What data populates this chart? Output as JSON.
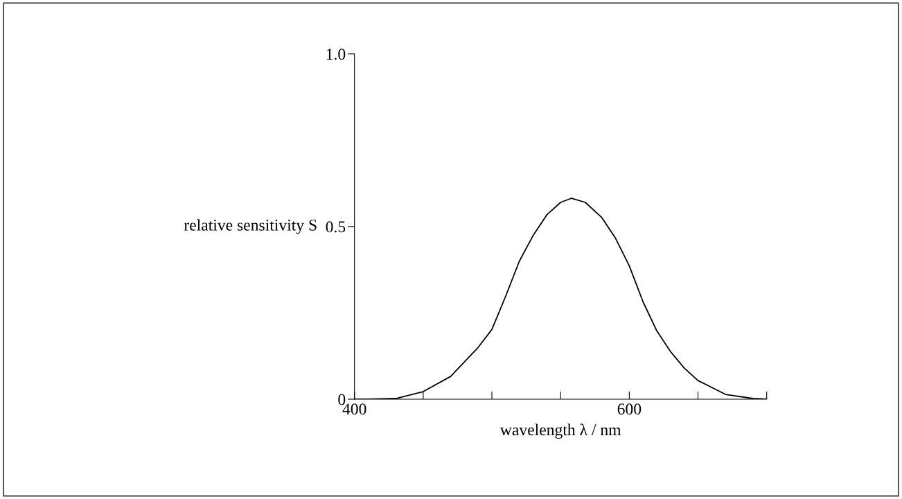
{
  "chart_data": {
    "type": "line",
    "xlabel": "wavelength λ / nm",
    "ylabel": "relative sensitivity S",
    "x": [
      400,
      410,
      430,
      450,
      470,
      490,
      500,
      510,
      520,
      530,
      540,
      550,
      558,
      568,
      580,
      590,
      600,
      610,
      620,
      630,
      640,
      650,
      670,
      690,
      700
    ],
    "series": [
      {
        "color": "#000000",
        "values": [
          0,
          0,
          0.002,
          0.022,
          0.066,
          0.15,
          0.202,
          0.298,
          0.4,
          0.474,
          0.534,
          0.57,
          0.582,
          0.57,
          0.526,
          0.466,
          0.386,
          0.282,
          0.198,
          0.138,
          0.09,
          0.054,
          0.014,
          0.002,
          0
        ]
      }
    ],
    "xlim": [
      400,
      700
    ],
    "xticks": [
      400,
      {
        "value": 450,
        "label": null
      },
      {
        "value": 500,
        "label": null
      },
      {
        "value": 550,
        "label": null
      },
      600,
      {
        "value": 650,
        "label": null
      },
      {
        "value": 700,
        "label": null
      }
    ],
    "ylim": [
      0,
      1
    ],
    "yticks": [
      0,
      0.5,
      {
        "value": 1,
        "label": "1.0"
      }
    ],
    "grid": false,
    "legend": false,
    "marker": "none",
    "line_style": "solid"
  }
}
